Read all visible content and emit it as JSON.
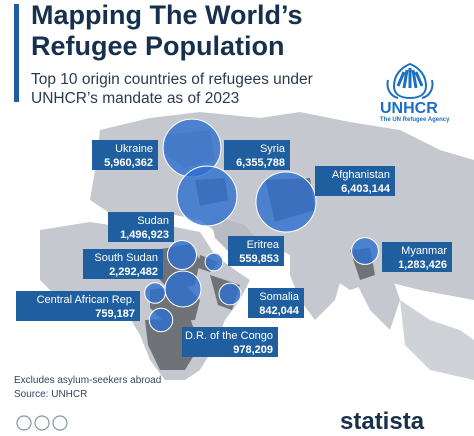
{
  "header": {
    "title": "Mapping The World’s Refugee Population",
    "subtitle": "Top 10 origin countries of refugees under UNHCR’s mandate as of 2023"
  },
  "logo": {
    "name": "UNHCR",
    "tagline": "The UN Refugee Agency"
  },
  "footer": {
    "note": "Excludes asylum-seekers abroad",
    "source": "Source: UNHCR",
    "brand": "statista"
  },
  "colors": {
    "label_bg": "#1f5fa0",
    "bubble": "#2d6fd0",
    "map_land": "#c5c9cf",
    "map_land_dark": "#6f7378",
    "title": "#17304d"
  },
  "chart_data": {
    "type": "bubble-map",
    "title": "Mapping The World’s Refugee Population",
    "subtitle": "Top 10 origin countries of refugees under UNHCR’s mandate as of 2023",
    "series": [
      {
        "country": "Ukraine",
        "value": 5960362,
        "label": "5,960,362"
      },
      {
        "country": "Syria",
        "value": 6355788,
        "label": "6,355,788"
      },
      {
        "country": "Afghanistan",
        "value": 6403144,
        "label": "6,403,144"
      },
      {
        "country": "Sudan",
        "value": 1496923,
        "label": "1,496,923"
      },
      {
        "country": "Eritrea",
        "value": 559853,
        "label": "559,853"
      },
      {
        "country": "South Sudan",
        "value": 2292482,
        "label": "2,292,482"
      },
      {
        "country": "Myanmar",
        "value": 1283426,
        "label": "1,283,426"
      },
      {
        "country": "Central African Rep.",
        "value": 759187,
        "label": "759,187"
      },
      {
        "country": "Somalia",
        "value": 842044,
        "label": "842,044"
      },
      {
        "country": "D.R. of the Congo",
        "value": 978209,
        "label": "978,209"
      }
    ],
    "notes": [
      "Excludes asylum-seekers abroad"
    ],
    "source": "Source: UNHCR"
  }
}
